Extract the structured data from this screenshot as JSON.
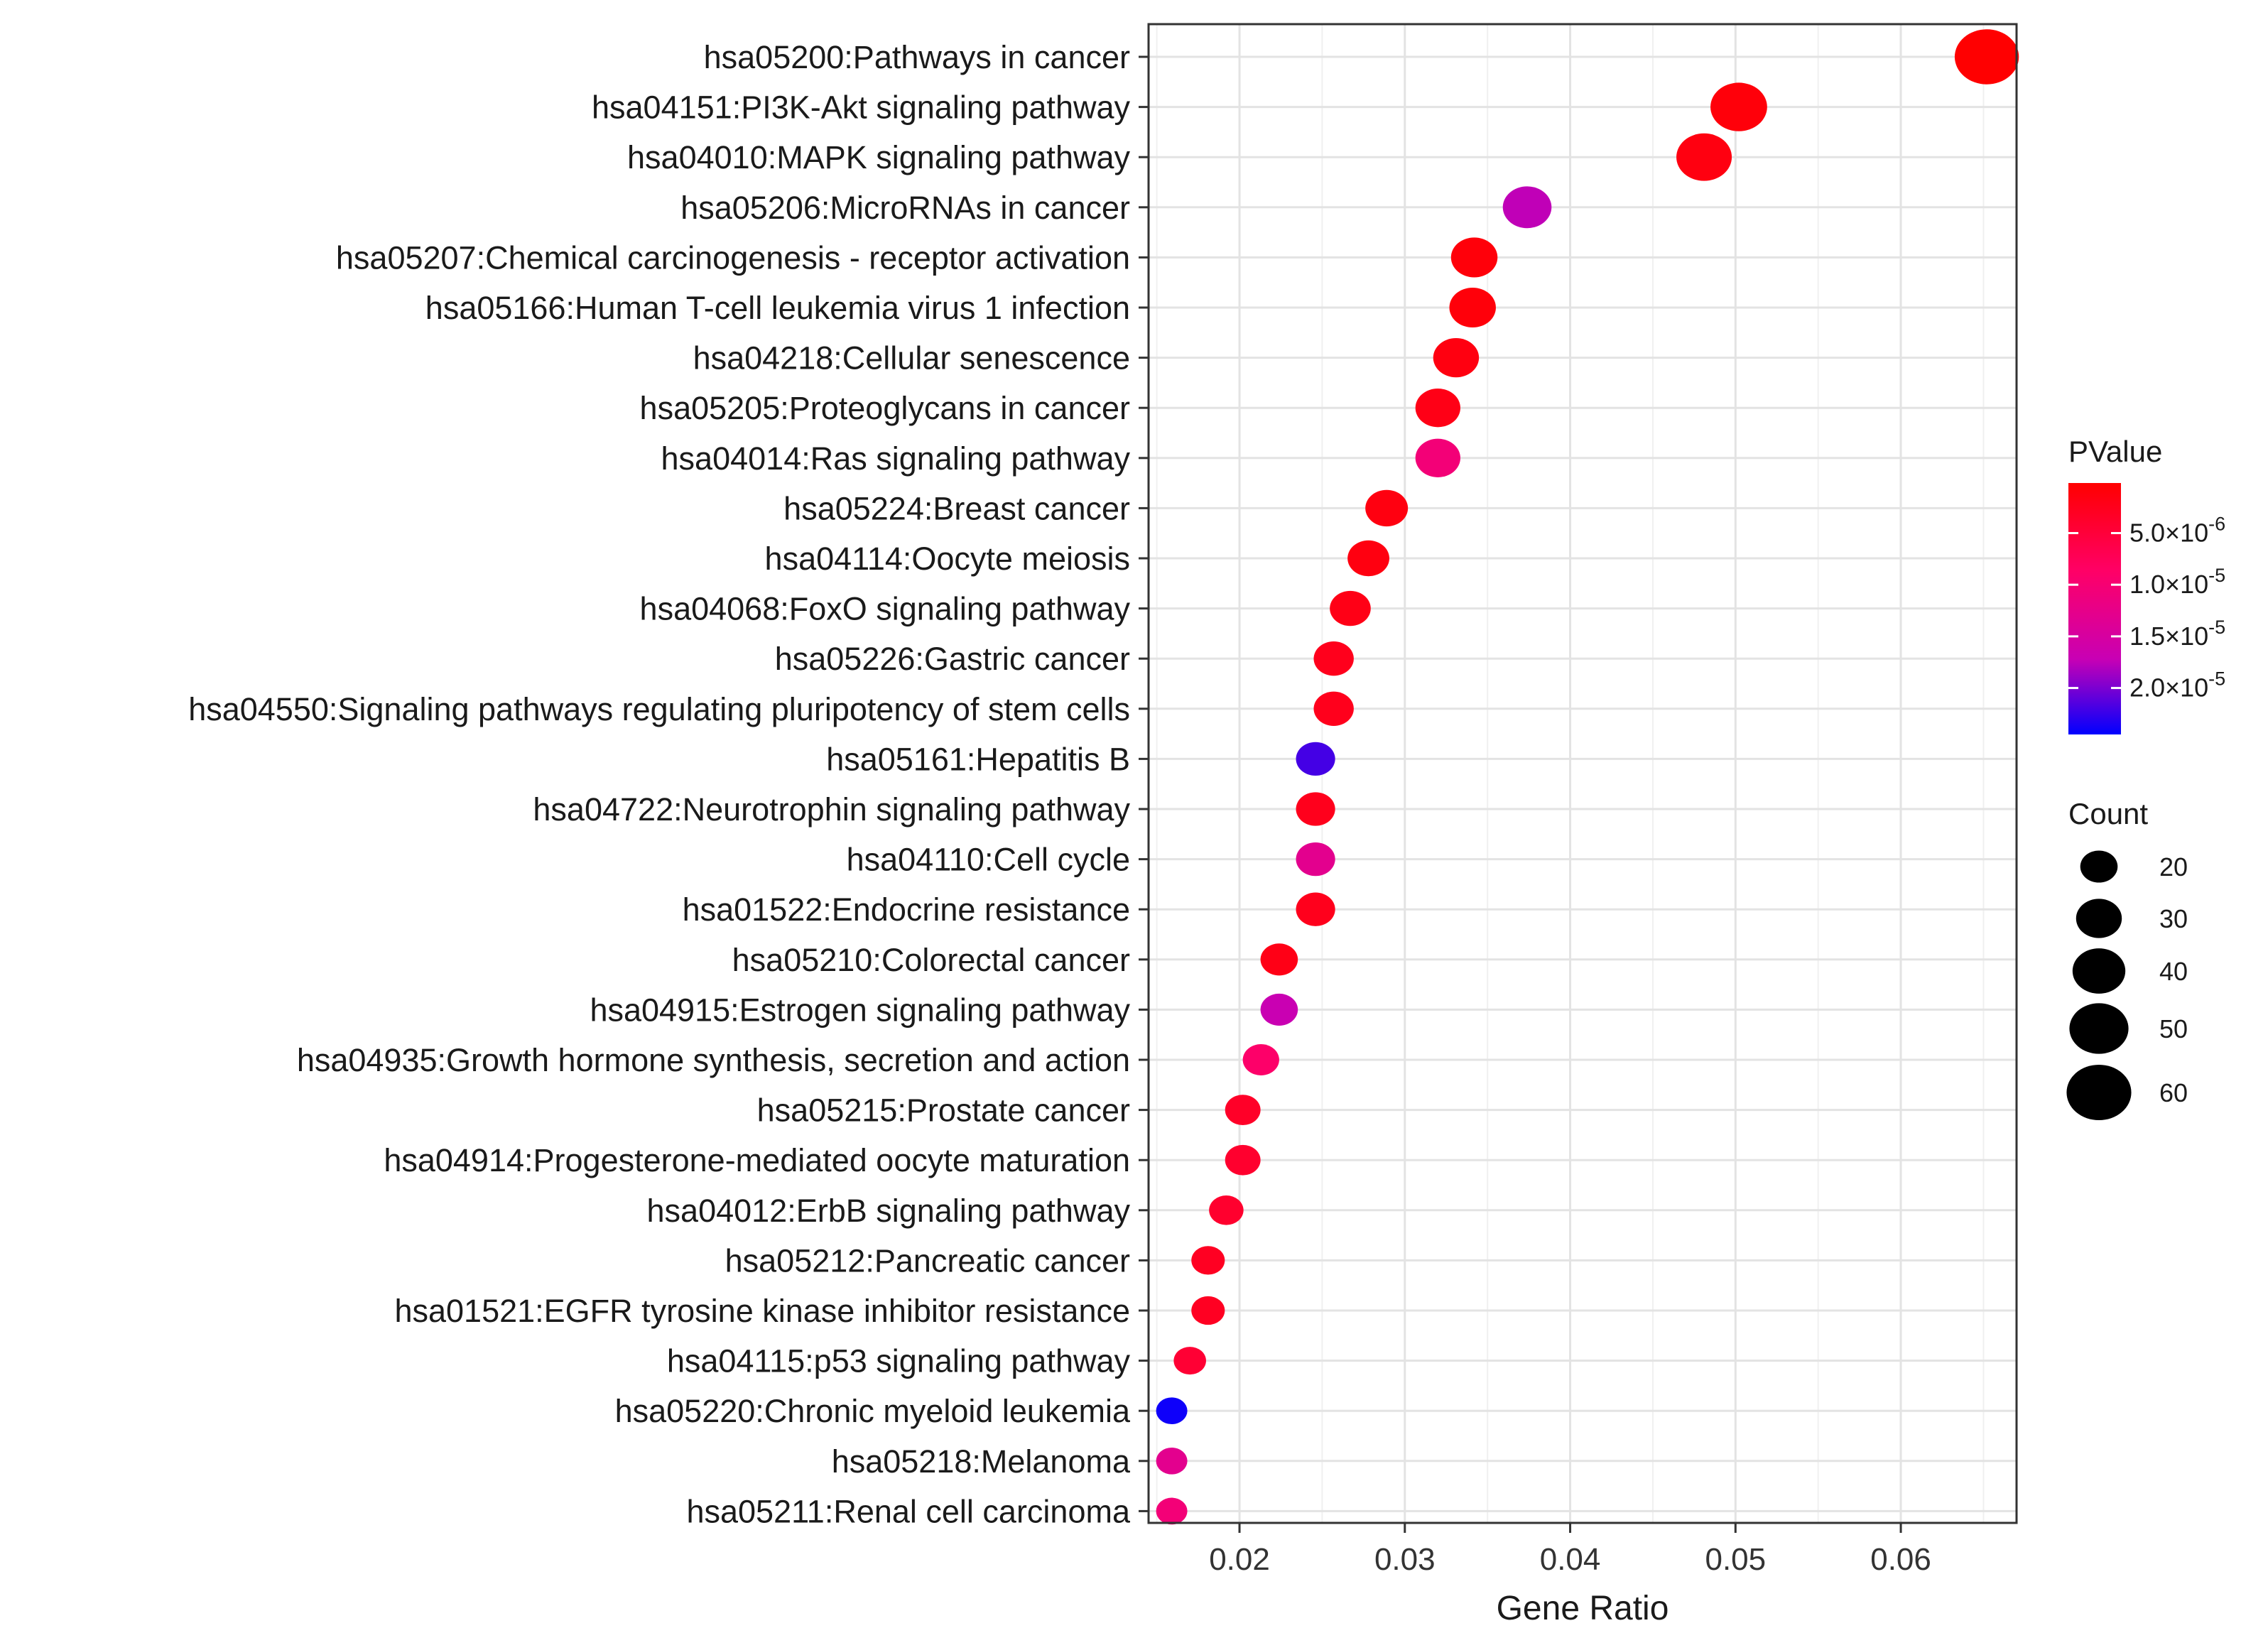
{
  "chart_data": {
    "type": "scatter",
    "subtype": "bubble-dotplot",
    "title": "",
    "xlabel": "Gene Ratio",
    "ylabel": "",
    "xlim": [
      0.0145,
      0.067
    ],
    "x_ticks": [
      0.02,
      0.03,
      0.04,
      0.05,
      0.06
    ],
    "x_tick_labels": [
      "0.02",
      "0.03",
      "0.04",
      "0.05",
      "0.06"
    ],
    "grid": true,
    "legend_placement": "right",
    "colors": {
      "low_p": "#ff0000",
      "high_p": "#0000ff",
      "mid_p": "#b000b0"
    },
    "color_legend": {
      "title": "PValue",
      "range": [
        1.5e-07,
        2.45e-05
      ],
      "ticks": [
        {
          "value": 5e-06,
          "base": "5.0×10",
          "exp": "-6"
        },
        {
          "value": 1e-05,
          "base": "1.0×10",
          "exp": "-5"
        },
        {
          "value": 1.5e-05,
          "base": "1.5×10",
          "exp": "-5"
        },
        {
          "value": 2e-05,
          "base": "2.0×10",
          "exp": "-5"
        }
      ]
    },
    "size_legend": {
      "title": "Count",
      "entries": [
        {
          "count": 20,
          "label": "20"
        },
        {
          "count": 30,
          "label": "30"
        },
        {
          "count": 40,
          "label": "40"
        },
        {
          "count": 50,
          "label": "50"
        },
        {
          "count": 60,
          "label": "60"
        }
      ]
    },
    "points": [
      {
        "term": "hsa05200:Pathways in cancer",
        "gene_ratio": 0.0652,
        "count": 59,
        "pvalue": 2e-07
      },
      {
        "term": "hsa04151:PI3K-Akt signaling pathway",
        "gene_ratio": 0.0502,
        "count": 46,
        "pvalue": 1e-06
      },
      {
        "term": "hsa04010:MAPK signaling pathway",
        "gene_ratio": 0.0481,
        "count": 44,
        "pvalue": 1.5e-06
      },
      {
        "term": "hsa05206:MicroRNAs in cancer",
        "gene_ratio": 0.0374,
        "count": 34,
        "pvalue": 1.75e-05
      },
      {
        "term": "hsa05207:Chemical carcinogenesis - receptor activation",
        "gene_ratio": 0.0342,
        "count": 31,
        "pvalue": 1e-06
      },
      {
        "term": "hsa05166:Human T-cell leukemia virus 1 infection",
        "gene_ratio": 0.0341,
        "count": 31,
        "pvalue": 1e-06
      },
      {
        "term": "hsa04218:Cellular senescence",
        "gene_ratio": 0.0331,
        "count": 30,
        "pvalue": 1.5e-06
      },
      {
        "term": "hsa05205:Proteoglycans in cancer",
        "gene_ratio": 0.032,
        "count": 29,
        "pvalue": 2e-06
      },
      {
        "term": "hsa04014:Ras signaling pathway",
        "gene_ratio": 0.032,
        "count": 29,
        "pvalue": 1.05e-05
      },
      {
        "term": "hsa05224:Breast cancer",
        "gene_ratio": 0.0289,
        "count": 26,
        "pvalue": 1.5e-06
      },
      {
        "term": "hsa04114:Oocyte meiosis",
        "gene_ratio": 0.0278,
        "count": 25,
        "pvalue": 1.5e-06
      },
      {
        "term": "hsa04068:FoxO signaling pathway",
        "gene_ratio": 0.0267,
        "count": 24,
        "pvalue": 2e-06
      },
      {
        "term": "hsa05226:Gastric cancer",
        "gene_ratio": 0.0257,
        "count": 23,
        "pvalue": 2.5e-06
      },
      {
        "term": "hsa04550:Signaling pathways regulating pluripotency of stem cells",
        "gene_ratio": 0.0257,
        "count": 23,
        "pvalue": 2.5e-06
      },
      {
        "term": "hsa05161:Hepatitis B",
        "gene_ratio": 0.0246,
        "count": 22,
        "pvalue": 2.2e-05
      },
      {
        "term": "hsa04722:Neurotrophin signaling pathway",
        "gene_ratio": 0.0246,
        "count": 22,
        "pvalue": 2.5e-06
      },
      {
        "term": "hsa04110:Cell cycle",
        "gene_ratio": 0.0246,
        "count": 22,
        "pvalue": 1.3e-05
      },
      {
        "term": "hsa01522:Endocrine resistance",
        "gene_ratio": 0.0246,
        "count": 22,
        "pvalue": 2.5e-06
      },
      {
        "term": "hsa05210:Colorectal cancer",
        "gene_ratio": 0.0224,
        "count": 20,
        "pvalue": 2e-06
      },
      {
        "term": "hsa04915:Estrogen signaling pathway",
        "gene_ratio": 0.0224,
        "count": 20,
        "pvalue": 1.7e-05
      },
      {
        "term": "hsa04935:Growth hormone synthesis, secretion and action",
        "gene_ratio": 0.0213,
        "count": 19,
        "pvalue": 9e-06
      },
      {
        "term": "hsa05215:Prostate cancer",
        "gene_ratio": 0.0202,
        "count": 18,
        "pvalue": 3.5e-06
      },
      {
        "term": "hsa04914:Progesterone-mediated oocyte maturation",
        "gene_ratio": 0.0202,
        "count": 18,
        "pvalue": 4e-06
      },
      {
        "term": "hsa04012:ErbB signaling pathway",
        "gene_ratio": 0.0192,
        "count": 17,
        "pvalue": 4e-06
      },
      {
        "term": "hsa05212:Pancreatic cancer",
        "gene_ratio": 0.0181,
        "count": 16,
        "pvalue": 3e-06
      },
      {
        "term": "hsa01521:EGFR tyrosine kinase inhibitor resistance",
        "gene_ratio": 0.0181,
        "count": 16,
        "pvalue": 3e-06
      },
      {
        "term": "hsa04115:p53 signaling pathway",
        "gene_ratio": 0.017,
        "count": 15,
        "pvalue": 4.5e-06
      },
      {
        "term": "hsa05220:Chronic myeloid leukemia",
        "gene_ratio": 0.0159,
        "count": 14,
        "pvalue": 2.4e-05
      },
      {
        "term": "hsa05218:Melanoma",
        "gene_ratio": 0.0159,
        "count": 14,
        "pvalue": 1.3e-05
      },
      {
        "term": "hsa05211:Renal cell carcinoma",
        "gene_ratio": 0.0159,
        "count": 14,
        "pvalue": 1.05e-05
      }
    ]
  }
}
